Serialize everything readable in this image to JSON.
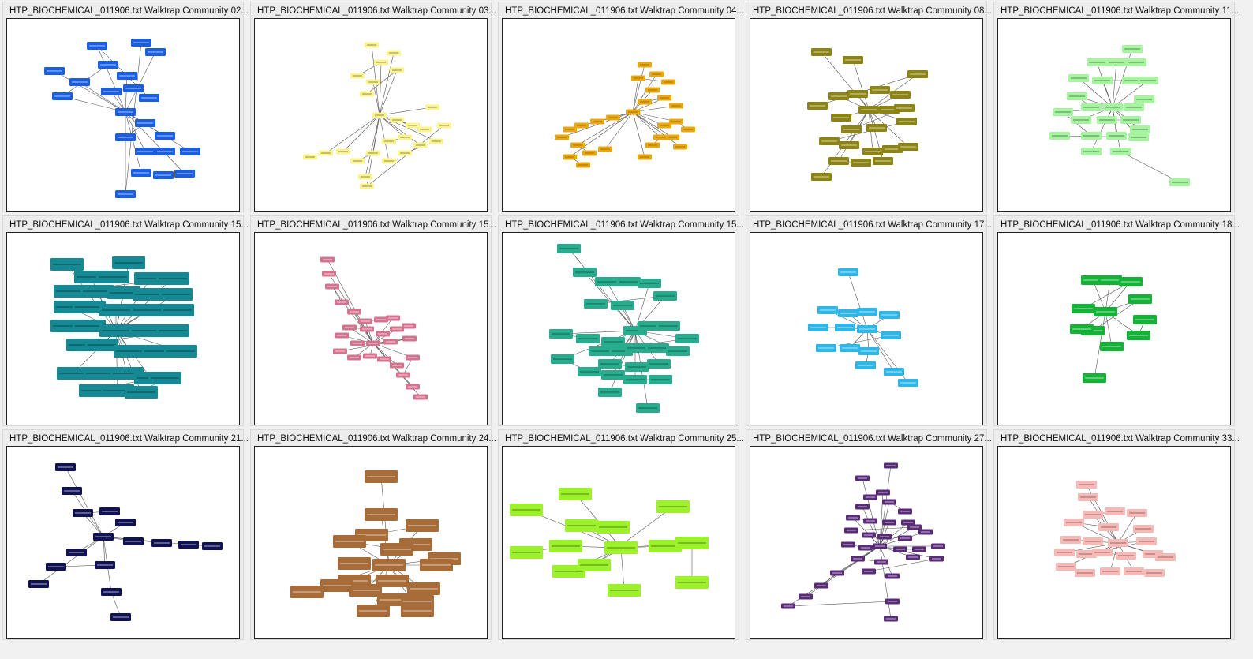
{
  "thumbnails": [
    {
      "title": "HTP_BIOCHEMICAL_011906.txt Walktrap Community 02...",
      "color": "#1a5ee6",
      "text_color": "#ffffff",
      "size": "s"
    },
    {
      "title": "HTP_BIOCHEMICAL_011906.txt Walktrap Community 03...",
      "color": "#fbf48a",
      "text_color": "#555555",
      "size": "xs"
    },
    {
      "title": "HTP_BIOCHEMICAL_011906.txt Walktrap Community 04...",
      "color": "#e9a90c",
      "text_color": "#7a5200",
      "size": "xs"
    },
    {
      "title": "HTP_BIOCHEMICAL_011906.txt Walktrap Community 08...",
      "color": "#8c8414",
      "text_color": "#ffffff",
      "size": "s"
    },
    {
      "title": "HTP_BIOCHEMICAL_011906.txt Walktrap Community 11...",
      "color": "#a6f4a0",
      "text_color": "#2a5a2a",
      "size": "s"
    },
    {
      "title": "HTP_BIOCHEMICAL_011906.txt Walktrap Community 15...",
      "color": "#168a94",
      "text_color": "#0a2a2e",
      "size": "l"
    },
    {
      "title": "HTP_BIOCHEMICAL_011906.txt Walktrap Community 15...",
      "color": "#d5738f",
      "text_color": "#ffffff",
      "size": "xs"
    },
    {
      "title": "HTP_BIOCHEMICAL_011906.txt Walktrap Community 15...",
      "color": "#27ad8e",
      "text_color": "#0d3d30",
      "size": "m"
    },
    {
      "title": "HTP_BIOCHEMICAL_011906.txt Walktrap Community 17...",
      "color": "#2db6e6",
      "text_color": "#ffffff",
      "size": "s"
    },
    {
      "title": "HTP_BIOCHEMICAL_011906.txt Walktrap Community 18...",
      "color": "#13b338",
      "text_color": "#ffffff",
      "size": "m"
    },
    {
      "title": "HTP_BIOCHEMICAL_011906.txt Walktrap Community 21...",
      "color": "#111155",
      "text_color": "#ffffff",
      "size": "s"
    },
    {
      "title": "HTP_BIOCHEMICAL_011906.txt Walktrap Community 24...",
      "color": "#a86c38",
      "text_color": "#ffffff",
      "size": "l"
    },
    {
      "title": "HTP_BIOCHEMICAL_011906.txt Walktrap Community 25...",
      "color": "#9cf22a",
      "text_color": "#2f4a0a",
      "size": "l"
    },
    {
      "title": "HTP_BIOCHEMICAL_011906.txt Walktrap Community 27...",
      "color": "#5a2b78",
      "text_color": "#ffffff",
      "size": "xs"
    },
    {
      "title": "HTP_BIOCHEMICAL_011906.txt Walktrap Community 33...",
      "color": "#f5b9b6",
      "text_color": "#7a3a3a",
      "size": "s"
    }
  ]
}
